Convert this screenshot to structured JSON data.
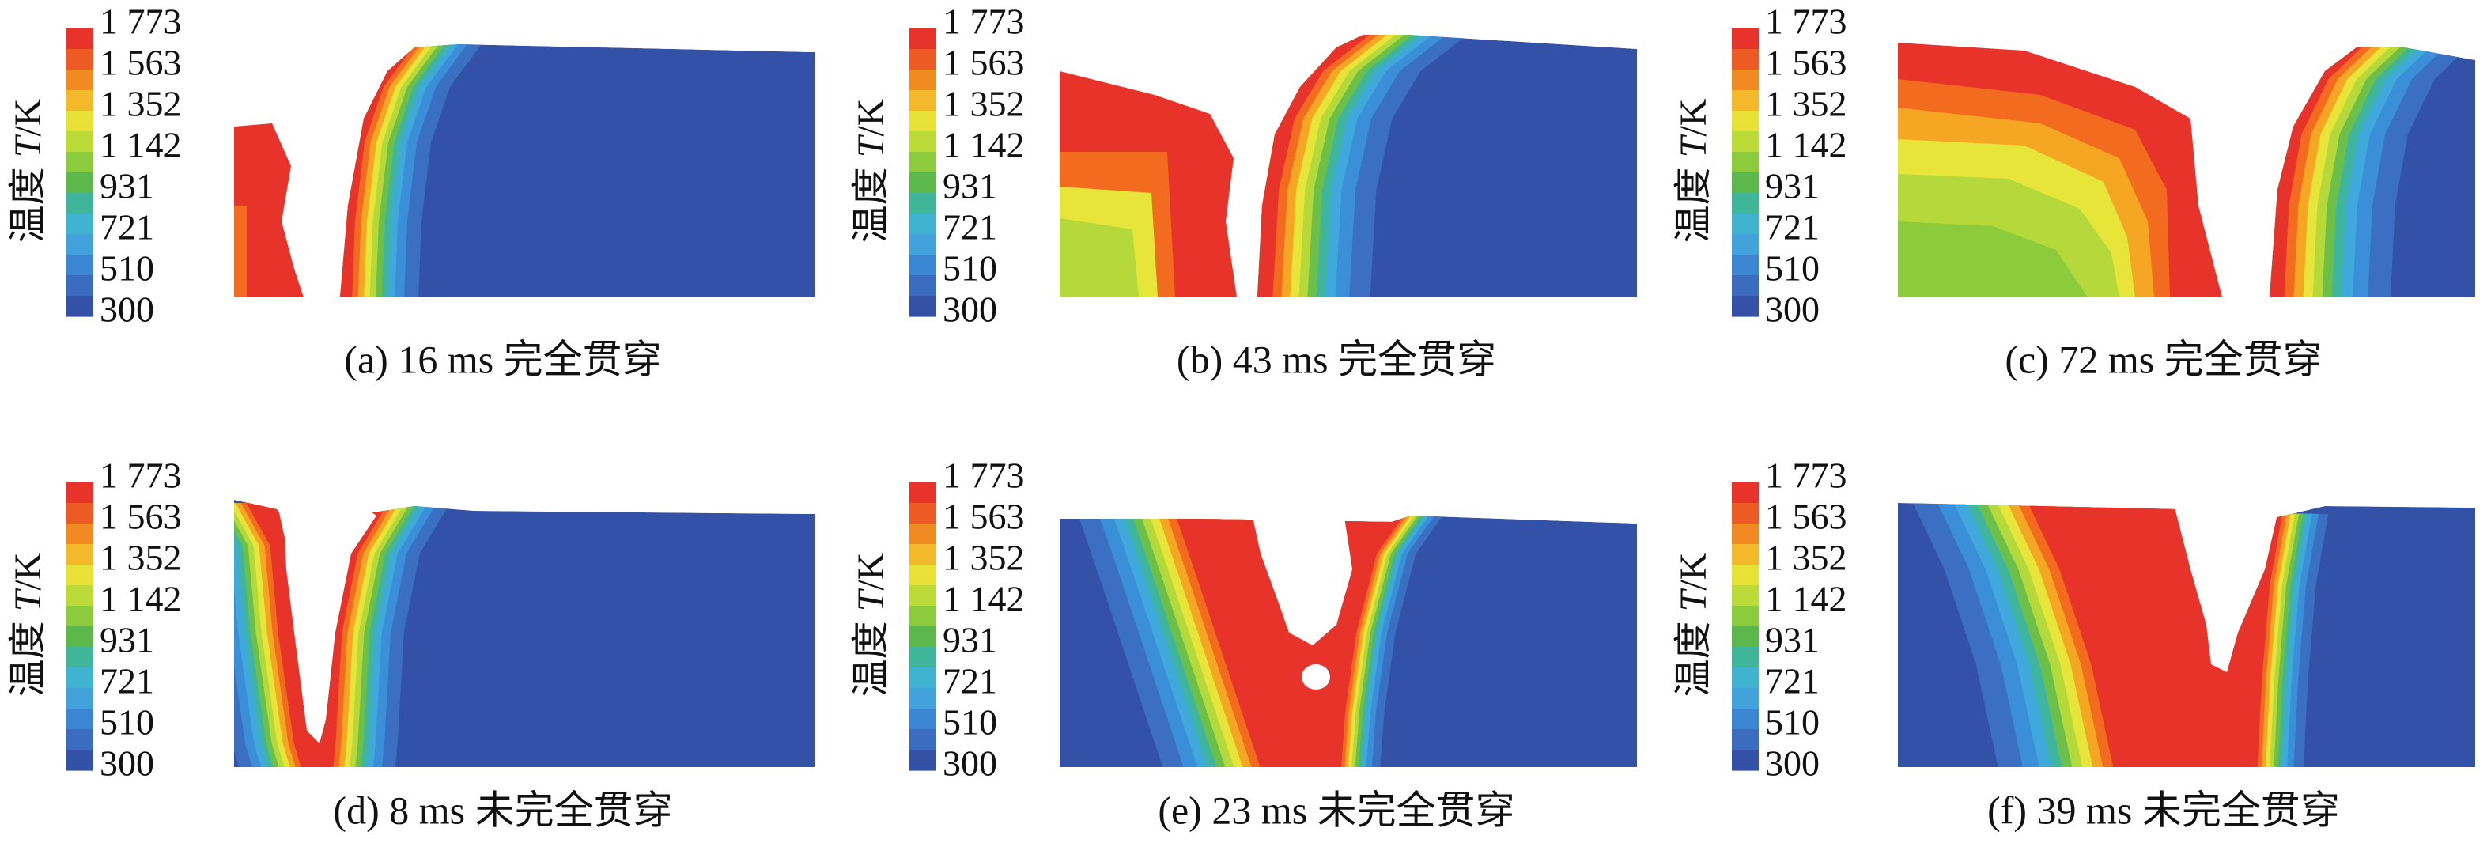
{
  "colorbar": {
    "labels": [
      "1 773",
      "1 563",
      "1 352",
      "1 142",
      "931",
      "721",
      "510",
      "300"
    ],
    "axis_label": {
      "name": "温度",
      "symbol": "T",
      "unit": "/K"
    }
  },
  "panels": [
    {
      "caption": "(a) 16 ms 完全贯穿"
    },
    {
      "caption": "(b) 43 ms 完全贯穿"
    },
    {
      "caption": "(c) 72 ms 完全贯穿"
    },
    {
      "caption": "(d) 8 ms 未完全贯穿"
    },
    {
      "caption": "(e) 23 ms 未完全贯穿"
    },
    {
      "caption": "(f) 39 ms 未完全贯穿"
    }
  ]
}
